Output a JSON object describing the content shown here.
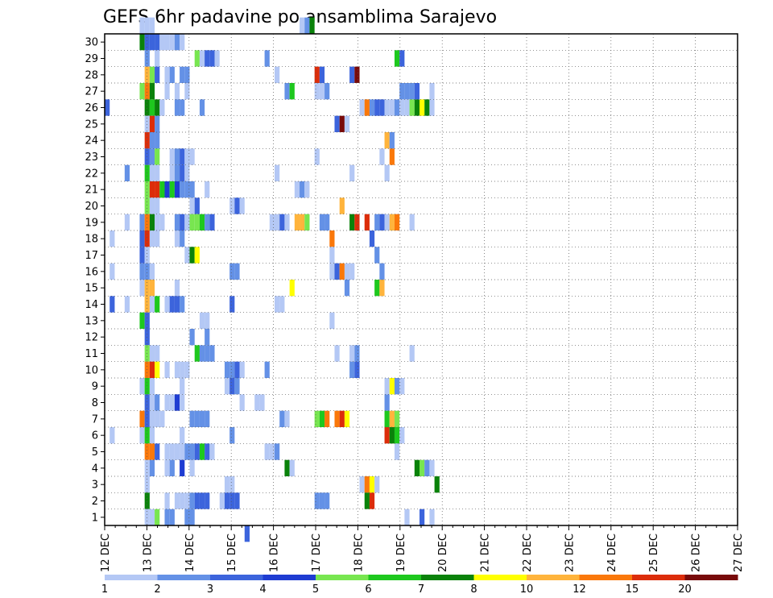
{
  "chart_data": {
    "type": "heatmap",
    "title": "GEFS 6hr padavine po ansamblima Sarajevo",
    "x_tick_labels": [
      "12 DEC",
      "13 DEC",
      "14 DEC",
      "15 DEC",
      "16 DEC",
      "17 DEC",
      "18 DEC",
      "19 DEC",
      "20 DEC",
      "21 DEC",
      "22 DEC",
      "23 DEC",
      "24 DEC",
      "25 DEC",
      "26 DEC",
      "27 DEC"
    ],
    "y_tick_labels": [
      "1",
      "2",
      "3",
      "4",
      "5",
      "6",
      "7",
      "8",
      "9",
      "10",
      "11",
      "12",
      "13",
      "14",
      "15",
      "16",
      "17",
      "18",
      "19",
      "20",
      "21",
      "22",
      "23",
      "24",
      "25",
      "26",
      "27",
      "28",
      "29",
      "30"
    ],
    "xlim": [
      0,
      60
    ],
    "ylim": [
      0.5,
      30.5
    ],
    "colorbar": {
      "labels": [
        "1",
        "2",
        "3",
        "4",
        "5",
        "6",
        "7",
        "8",
        "10",
        "12",
        "15",
        "20"
      ],
      "colors": [
        "#b4c8f5",
        "#6491e6",
        "#3c64dc",
        "#1e3cd2",
        "#78e650",
        "#1ec81e",
        "#0a820a",
        "#ffff00",
        "#ffb43c",
        "#fa780a",
        "#dc2d0a",
        "#780a0a"
      ]
    },
    "grid": true,
    "cells": [
      [
        0,
        25,
        3
      ],
      [
        1,
        17,
        1
      ],
      [
        1,
        15,
        1
      ],
      [
        1,
        13,
        3
      ],
      [
        1,
        5,
        1
      ],
      [
        4,
        21,
        2
      ],
      [
        4,
        18,
        1
      ],
      [
        4,
        13,
        1
      ],
      [
        7,
        30,
        1
      ],
      [
        7,
        29,
        7
      ],
      [
        7,
        26,
        5
      ],
      [
        7,
        18,
        2
      ],
      [
        7,
        17,
        3
      ],
      [
        7,
        16,
        3
      ],
      [
        7,
        15,
        2
      ],
      [
        7,
        14,
        1
      ],
      [
        7,
        12,
        6
      ],
      [
        7,
        8,
        1
      ],
      [
        7,
        6,
        10
      ],
      [
        7,
        5,
        1
      ],
      [
        8,
        30,
        1
      ],
      [
        8,
        29,
        3
      ],
      [
        8,
        28,
        2
      ],
      [
        8,
        27,
        9
      ],
      [
        8,
        26,
        10
      ],
      [
        8,
        25,
        7
      ],
      [
        8,
        24,
        1
      ],
      [
        8,
        23,
        11
      ],
      [
        8,
        22,
        3
      ],
      [
        8,
        21,
        6
      ],
      [
        8,
        20,
        5
      ],
      [
        8,
        19,
        5
      ],
      [
        8,
        18,
        10
      ],
      [
        8,
        17,
        11
      ],
      [
        8,
        16,
        1
      ],
      [
        8,
        15,
        2
      ],
      [
        8,
        14,
        9
      ],
      [
        8,
        13,
        9
      ],
      [
        8,
        12,
        3
      ],
      [
        8,
        11,
        3
      ],
      [
        8,
        10,
        5
      ],
      [
        8,
        9,
        10
      ],
      [
        8,
        8,
        6
      ],
      [
        8,
        7,
        3
      ],
      [
        8,
        6,
        3
      ],
      [
        8,
        5,
        6
      ],
      [
        8,
        4,
        10
      ],
      [
        8,
        3,
        1
      ],
      [
        8,
        2,
        1
      ],
      [
        8,
        1,
        7
      ],
      [
        8,
        0,
        1
      ],
      [
        9,
        30,
        1
      ],
      [
        9,
        29,
        3
      ],
      [
        9,
        27,
        5
      ],
      [
        9,
        26,
        7
      ],
      [
        9,
        25,
        6
      ],
      [
        9,
        24,
        11
      ],
      [
        9,
        23,
        2
      ],
      [
        9,
        22,
        2
      ],
      [
        9,
        21,
        1
      ],
      [
        9,
        20,
        11
      ],
      [
        9,
        19,
        1
      ],
      [
        9,
        18,
        7
      ],
      [
        9,
        17,
        1
      ],
      [
        9,
        15,
        1
      ],
      [
        9,
        14,
        9
      ],
      [
        9,
        13,
        1
      ],
      [
        9,
        10,
        1
      ],
      [
        9,
        9,
        11
      ],
      [
        9,
        8,
        1
      ],
      [
        9,
        7,
        1
      ],
      [
        9,
        6,
        1
      ],
      [
        9,
        5,
        1
      ],
      [
        9,
        4,
        10
      ],
      [
        9,
        3,
        2
      ],
      [
        9,
        0,
        1
      ],
      [
        10,
        29,
        3
      ],
      [
        10,
        28,
        1
      ],
      [
        10,
        27,
        3
      ],
      [
        10,
        25,
        7
      ],
      [
        10,
        24,
        2
      ],
      [
        10,
        23,
        2
      ],
      [
        10,
        22,
        5
      ],
      [
        10,
        21,
        1
      ],
      [
        10,
        20,
        11
      ],
      [
        10,
        19,
        1
      ],
      [
        10,
        18,
        1
      ],
      [
        10,
        17,
        1
      ],
      [
        10,
        13,
        6
      ],
      [
        10,
        10,
        1
      ],
      [
        10,
        9,
        8
      ],
      [
        10,
        7,
        2
      ],
      [
        10,
        6,
        1
      ],
      [
        10,
        4,
        3
      ],
      [
        10,
        0,
        5
      ],
      [
        11,
        29,
        1
      ],
      [
        11,
        25,
        1
      ],
      [
        11,
        18,
        1
      ],
      [
        11,
        20,
        6
      ],
      [
        11,
        6,
        1
      ],
      [
        12,
        29,
        1
      ],
      [
        12,
        27,
        1
      ],
      [
        12,
        26,
        1
      ],
      [
        12,
        20,
        4
      ],
      [
        12,
        13,
        1
      ],
      [
        12,
        9,
        1
      ],
      [
        12,
        7,
        1
      ],
      [
        12,
        4,
        1
      ],
      [
        12,
        3,
        1
      ],
      [
        12,
        1,
        1
      ],
      [
        12,
        0,
        2
      ],
      [
        13,
        29,
        1
      ],
      [
        13,
        27,
        2
      ],
      [
        13,
        22,
        1
      ],
      [
        13,
        21,
        1
      ],
      [
        13,
        20,
        6
      ],
      [
        13,
        13,
        3
      ],
      [
        13,
        7,
        1
      ],
      [
        13,
        4,
        1
      ],
      [
        13,
        3,
        2
      ],
      [
        13,
        0,
        2
      ],
      [
        14,
        29,
        2
      ],
      [
        14,
        26,
        1
      ],
      [
        14,
        25,
        2
      ],
      [
        14,
        22,
        2
      ],
      [
        14,
        21,
        2
      ],
      [
        14,
        20,
        4
      ],
      [
        14,
        18,
        2
      ],
      [
        14,
        17,
        1
      ],
      [
        14,
        14,
        1
      ],
      [
        14,
        13,
        3
      ],
      [
        14,
        9,
        1
      ],
      [
        14,
        7,
        4
      ],
      [
        14,
        4,
        1
      ],
      [
        14,
        1,
        1
      ],
      [
        15,
        29,
        1
      ],
      [
        15,
        27,
        2
      ],
      [
        15,
        25,
        2
      ],
      [
        15,
        22,
        3
      ],
      [
        15,
        21,
        3
      ],
      [
        15,
        20,
        2
      ],
      [
        15,
        18,
        3
      ],
      [
        15,
        17,
        2
      ],
      [
        15,
        13,
        2
      ],
      [
        15,
        9,
        1
      ],
      [
        15,
        8,
        1
      ],
      [
        15,
        7,
        1
      ],
      [
        15,
        5,
        1
      ],
      [
        15,
        4,
        1
      ],
      [
        15,
        3,
        4
      ],
      [
        15,
        1,
        1
      ],
      [
        16,
        27,
        2
      ],
      [
        16,
        26,
        1
      ],
      [
        16,
        22,
        1
      ],
      [
        16,
        21,
        1
      ],
      [
        16,
        20,
        2
      ],
      [
        16,
        18,
        1
      ],
      [
        16,
        16,
        1
      ],
      [
        16,
        9,
        1
      ],
      [
        16,
        4,
        2
      ],
      [
        16,
        1,
        1
      ],
      [
        16,
        0,
        2
      ],
      [
        17,
        22,
        1
      ],
      [
        17,
        20,
        2
      ],
      [
        17,
        19,
        1
      ],
      [
        17,
        18,
        5
      ],
      [
        17,
        16,
        7
      ],
      [
        17,
        11,
        2
      ],
      [
        17,
        6,
        2
      ],
      [
        17,
        4,
        2
      ],
      [
        17,
        3,
        1
      ],
      [
        17,
        1,
        2
      ],
      [
        17,
        0,
        2
      ],
      [
        18,
        28,
        5
      ],
      [
        18,
        19,
        3
      ],
      [
        18,
        18,
        5
      ],
      [
        18,
        16,
        8
      ],
      [
        18,
        10,
        6
      ],
      [
        18,
        6,
        2
      ],
      [
        18,
        4,
        3
      ],
      [
        18,
        1,
        3
      ],
      [
        19,
        28,
        1
      ],
      [
        19,
        25,
        2
      ],
      [
        19,
        18,
        6
      ],
      [
        19,
        12,
        1
      ],
      [
        19,
        10,
        2
      ],
      [
        19,
        6,
        2
      ],
      [
        19,
        4,
        6
      ],
      [
        19,
        1,
        3
      ],
      [
        20,
        28,
        3
      ],
      [
        20,
        20,
        1
      ],
      [
        20,
        18,
        2
      ],
      [
        20,
        12,
        1
      ],
      [
        20,
        11,
        2
      ],
      [
        20,
        10,
        2
      ],
      [
        20,
        6,
        2
      ],
      [
        20,
        4,
        3
      ],
      [
        20,
        1,
        3
      ],
      [
        21,
        28,
        3
      ],
      [
        21,
        18,
        3
      ],
      [
        21,
        10,
        2
      ],
      [
        21,
        4,
        1
      ],
      [
        22,
        28,
        1
      ],
      [
        23,
        1,
        1
      ],
      [
        24,
        8,
        1
      ],
      [
        24,
        9,
        2
      ],
      [
        24,
        2,
        1
      ],
      [
        24,
        1,
        3
      ],
      [
        25,
        19,
        1
      ],
      [
        25,
        15,
        2
      ],
      [
        25,
        13,
        3
      ],
      [
        25,
        9,
        2
      ],
      [
        25,
        8,
        3
      ],
      [
        25,
        5,
        2
      ],
      [
        25,
        2,
        1
      ],
      [
        25,
        1,
        3
      ],
      [
        26,
        19,
        3
      ],
      [
        26,
        15,
        2
      ],
      [
        26,
        9,
        3
      ],
      [
        26,
        8,
        2
      ],
      [
        26,
        1,
        3
      ],
      [
        27,
        19,
        1
      ],
      [
        27,
        9,
        1
      ],
      [
        27,
        7,
        1
      ],
      [
        28,
        -1,
        3
      ],
      [
        30,
        7,
        1
      ],
      [
        31,
        7,
        1
      ],
      [
        32,
        28,
        2
      ],
      [
        32,
        9,
        2
      ],
      [
        32,
        4,
        1
      ],
      [
        33,
        18,
        1
      ],
      [
        33,
        4,
        1
      ],
      [
        34,
        27,
        1
      ],
      [
        34,
        18,
        1
      ],
      [
        34,
        21,
        1
      ],
      [
        34,
        13,
        1
      ],
      [
        34,
        4,
        2
      ],
      [
        35,
        18,
        3
      ],
      [
        35,
        13,
        1
      ],
      [
        35,
        6,
        2
      ],
      [
        36,
        26,
        2
      ],
      [
        36,
        18,
        1
      ],
      [
        36,
        6,
        1
      ],
      [
        36,
        3,
        7
      ],
      [
        37,
        26,
        6
      ],
      [
        37,
        14,
        8
      ],
      [
        37,
        3,
        1
      ],
      [
        38,
        18,
        9
      ],
      [
        38,
        20,
        1
      ],
      [
        39,
        30,
        1
      ],
      [
        39,
        18,
        9
      ],
      [
        39,
        20,
        2
      ],
      [
        40,
        30,
        2
      ],
      [
        40,
        18,
        5
      ],
      [
        40,
        20,
        1
      ],
      [
        41,
        30,
        7
      ],
      [
        42,
        27,
        11
      ],
      [
        42,
        26,
        1
      ],
      [
        42,
        22,
        1
      ],
      [
        42,
        6,
        5
      ],
      [
        42,
        1,
        2
      ],
      [
        43,
        27,
        3
      ],
      [
        43,
        26,
        1
      ],
      [
        43,
        18,
        2
      ],
      [
        43,
        6,
        6
      ],
      [
        43,
        1,
        2
      ],
      [
        44,
        26,
        2
      ],
      [
        44,
        18,
        2
      ],
      [
        44,
        6,
        10
      ],
      [
        44,
        1,
        2
      ],
      [
        45,
        17,
        10
      ],
      [
        45,
        16,
        1
      ],
      [
        45,
        15,
        1
      ],
      [
        45,
        12,
        1
      ],
      [
        46,
        24,
        3
      ],
      [
        46,
        15,
        3
      ],
      [
        46,
        10,
        1
      ],
      [
        46,
        6,
        10
      ],
      [
        47,
        24,
        12
      ],
      [
        47,
        19,
        9
      ],
      [
        47,
        15,
        10
      ],
      [
        47,
        6,
        11
      ],
      [
        48,
        24,
        1
      ],
      [
        48,
        15,
        1
      ],
      [
        48,
        14,
        2
      ],
      [
        48,
        6,
        8
      ],
      [
        49,
        27,
        3
      ],
      [
        49,
        21,
        1
      ],
      [
        49,
        18,
        7
      ],
      [
        49,
        15,
        1
      ],
      [
        49,
        10,
        1
      ],
      [
        49,
        9,
        2
      ],
      [
        50,
        27,
        12
      ],
      [
        50,
        18,
        11
      ],
      [
        50,
        10,
        2
      ],
      [
        50,
        9,
        3
      ],
      [
        51,
        25,
        1
      ],
      [
        51,
        2,
        1
      ],
      [
        52,
        25,
        10
      ],
      [
        52,
        18,
        11
      ],
      [
        52,
        2,
        10
      ],
      [
        52,
        1,
        7
      ],
      [
        53,
        25,
        2
      ],
      [
        53,
        17,
        3
      ],
      [
        53,
        2,
        8
      ],
      [
        53,
        1,
        11
      ],
      [
        54,
        25,
        3
      ],
      [
        54,
        18,
        2
      ],
      [
        54,
        16,
        2
      ],
      [
        54,
        14,
        6
      ],
      [
        54,
        2,
        1
      ],
      [
        55,
        25,
        3
      ],
      [
        55,
        22,
        1
      ],
      [
        55,
        18,
        3
      ],
      [
        55,
        15,
        2
      ],
      [
        55,
        14,
        9
      ],
      [
        56,
        25,
        1
      ],
      [
        56,
        23,
        9
      ],
      [
        56,
        18,
        1
      ],
      [
        56,
        21,
        1
      ],
      [
        56,
        7,
        2
      ],
      [
        56,
        6,
        6
      ],
      [
        56,
        5,
        11
      ],
      [
        56,
        8,
        1
      ],
      [
        57,
        25,
        1
      ],
      [
        57,
        23,
        2
      ],
      [
        57,
        22,
        10
      ],
      [
        57,
        18,
        9
      ],
      [
        57,
        6,
        9
      ],
      [
        57,
        5,
        7
      ],
      [
        57,
        8,
        8
      ],
      [
        58,
        28,
        6
      ],
      [
        58,
        25,
        2
      ],
      [
        58,
        18,
        10
      ],
      [
        58,
        6,
        5
      ],
      [
        58,
        5,
        6
      ],
      [
        58,
        4,
        1
      ],
      [
        58,
        8,
        2
      ],
      [
        59,
        28,
        3
      ],
      [
        59,
        26,
        2
      ],
      [
        59,
        25,
        1
      ],
      [
        59,
        8,
        1
      ],
      [
        59,
        5,
        1
      ],
      [
        60,
        26,
        2
      ],
      [
        60,
        25,
        1
      ],
      [
        60,
        0,
        1
      ],
      [
        61,
        18,
        1
      ],
      [
        61,
        25,
        5
      ],
      [
        61,
        26,
        2
      ],
      [
        61,
        10,
        1
      ],
      [
        62,
        25,
        7
      ],
      [
        62,
        26,
        3
      ],
      [
        62,
        3,
        7
      ],
      [
        63,
        25,
        8
      ],
      [
        63,
        3,
        5
      ],
      [
        63,
        0,
        3
      ],
      [
        64,
        25,
        7
      ],
      [
        64,
        3,
        2
      ],
      [
        65,
        26,
        1
      ],
      [
        65,
        25,
        1
      ],
      [
        65,
        3,
        1
      ],
      [
        65,
        0,
        1
      ],
      [
        66,
        2,
        7
      ]
    ]
  }
}
